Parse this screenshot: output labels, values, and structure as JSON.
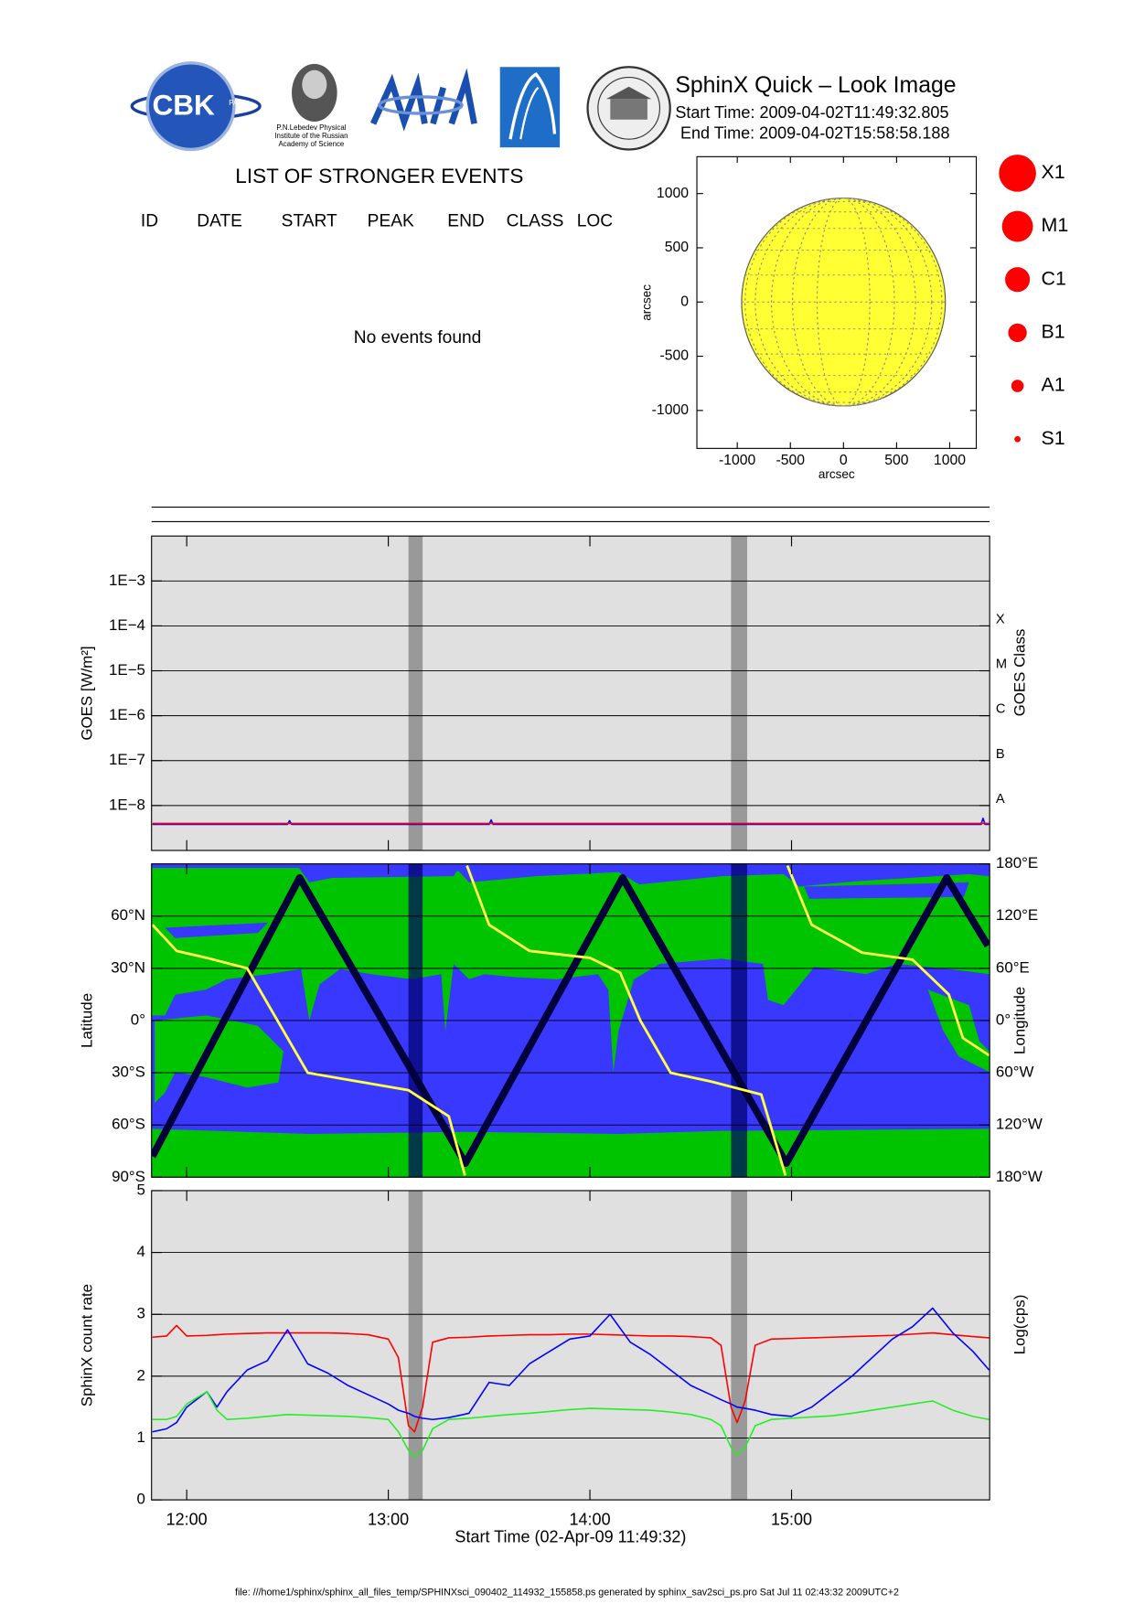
{
  "header": {
    "title": "SphinX Quick – Look Image",
    "start_time": "Start Time: 2009-04-02T11:49:32.805",
    "end_time": "End Time: 2009-04-02T15:58:58.188",
    "logo_cbk": "CBK",
    "logo_cbk_sub": "PAN",
    "logo_lebedev": [
      "P.N.Lebedev Physical",
      "Institute of the Russian",
      "Academy of Science"
    ]
  },
  "events": {
    "title": "LIST OF STRONGER EVENTS",
    "columns": [
      "ID",
      "DATE",
      "START",
      "PEAK",
      "END",
      "CLASS",
      "LOC"
    ],
    "empty_message": "No events found"
  },
  "footer": "file: ///home1/sphinx/sphinx_all_files_temp/SPHINXsci_090402_114932_155858.ps generated by sphinx_sav2sci_ps.pro Sat Jul 11 02:43:32 2009UTC+2",
  "chart_data": [
    {
      "type": "disk",
      "xlabel": "arcsec",
      "ylabel": "arcsec",
      "xlim": [
        -1380,
        1250
      ],
      "ylim": [
        -1350,
        1340
      ],
      "xticks": [
        -1000,
        -500,
        0,
        500,
        1000
      ],
      "yticks": [
        -1000,
        -500,
        0,
        500,
        1000
      ],
      "disk_radius": 959,
      "color": "#ffff33",
      "legend": {
        "labels": [
          "X1",
          "M1",
          "C1",
          "B1",
          "A1",
          "S1"
        ],
        "color": "#ff0000"
      }
    },
    {
      "type": "line",
      "ylabel": "GOES [W/m²]",
      "y2label": "GOES Class",
      "log_y": true,
      "grid": true,
      "xlim": [
        11.8256,
        15.9828
      ],
      "ylim": [
        1e-09,
        0.01
      ],
      "yticks": [
        {
          "value": 1e-08,
          "label": "1E−8"
        },
        {
          "value": 1e-07,
          "label": "1E−7"
        },
        {
          "value": 1e-06,
          "label": "1E−6"
        },
        {
          "value": 1e-05,
          "label": "1E−5"
        },
        {
          "value": 0.0001,
          "label": "1E−4"
        },
        {
          "value": 0.001,
          "label": "1E−3"
        }
      ],
      "y2lim": [
        1e-09,
        0.01
      ],
      "y2ticks": [
        {
          "value": 1e-08,
          "label": "A"
        },
        {
          "value": 1e-07,
          "label": "B"
        },
        {
          "value": 1e-06,
          "label": "C"
        },
        {
          "value": 1e-05,
          "label": "M"
        },
        {
          "value": 0.0001,
          "label": "X"
        }
      ],
      "shaded": [
        [
          13.1,
          13.17
        ],
        [
          14.7,
          14.78
        ]
      ],
      "shade_color": "#999999",
      "x": [
        11.83,
        12.0,
        12.5,
        12.51,
        12.52,
        13.0,
        13.5,
        13.51,
        13.52,
        14.0,
        14.5,
        15.0,
        15.5,
        15.94,
        15.95,
        15.96,
        15.98
      ],
      "series": [
        {
          "color": "#0000ff",
          "values": [
            3.8e-09,
            3.8e-09,
            3.8e-09,
            4.6e-09,
            3.8e-09,
            3.8e-09,
            3.8e-09,
            4.8e-09,
            3.8e-09,
            3.8e-09,
            3.8e-09,
            3.8e-09,
            3.8e-09,
            3.8e-09,
            5.2e-09,
            3.8e-09,
            3.8e-09
          ]
        },
        {
          "color": "#ff0000",
          "values": [
            4e-09,
            4e-09,
            4e-09,
            4e-09,
            4e-09,
            4e-09,
            4e-09,
            4e-09,
            4e-09,
            4e-09,
            4e-09,
            4e-09,
            4e-09,
            4e-09,
            4e-09,
            4e-09,
            4e-09
          ]
        }
      ]
    },
    {
      "type": "map",
      "ylabel": "Latitude",
      "y2label": "Longitude",
      "grid": true,
      "xlim": [
        11.8256,
        15.9828
      ],
      "ylim": [
        -90,
        90
      ],
      "yticks": [
        {
          "value": -90,
          "label": "90°S"
        },
        {
          "value": -60,
          "label": "60°S"
        },
        {
          "value": -30,
          "label": "30°S"
        },
        {
          "value": 0,
          "label": "0°"
        },
        {
          "value": 30,
          "label": "30°N"
        },
        {
          "value": 60,
          "label": "60°N"
        }
      ],
      "y2lim": [
        -180,
        180
      ],
      "y2ticks": [
        {
          "value": -180,
          "label": "180°W"
        },
        {
          "value": -120,
          "label": "120°W"
        },
        {
          "value": -60,
          "label": "60°W"
        },
        {
          "value": 0,
          "label": "0°"
        },
        {
          "value": 60,
          "label": "60°E"
        },
        {
          "value": 120,
          "label": "120°E"
        },
        {
          "value": 180,
          "label": "180°E"
        }
      ],
      "shaded": [
        [
          13.1,
          13.17
        ],
        [
          14.7,
          14.78
        ]
      ],
      "shade_color": "#000066",
      "series": [
        {
          "color": "#00003a",
          "x": [
            11.83,
            12.56,
            13.382,
            14.162,
            14.974,
            15.77,
            15.974
          ],
          "values": [
            -78,
            82,
            -82,
            82,
            -82,
            82,
            43
          ]
        },
        {
          "color": "#ffff44",
          "axis": "y2",
          "x": [
            11.83,
            11.95,
            12.1,
            12.3,
            12.45,
            12.6,
            12.8,
            13.1,
            13.3,
            13.38,
            13.385,
            13.39,
            13.5,
            13.7,
            14.0,
            14.15,
            14.25,
            14.4,
            14.6,
            14.85,
            14.97,
            14.975,
            14.98,
            15.1,
            15.35,
            15.6,
            15.78,
            15.85,
            15.98
          ],
          "values": [
            110,
            80,
            72,
            60,
            0,
            -60,
            -68,
            -80,
            -110,
            -178,
            null,
            178,
            110,
            80,
            72,
            55,
            0,
            -60,
            -70,
            -85,
            -178,
            null,
            178,
            110,
            78,
            70,
            30,
            -20,
            -40
          ]
        }
      ]
    },
    {
      "type": "line",
      "ylabel": "SphinX count rate",
      "y2label": "Log(cps)",
      "xlabel": "Start Time (02-Apr-09 11:49:32)",
      "grid": true,
      "xlim": [
        11.8256,
        15.9828
      ],
      "ylim": [
        0,
        5
      ],
      "xticks": [
        {
          "value": 12,
          "label": "12:00"
        },
        {
          "value": 13,
          "label": "13:00"
        },
        {
          "value": 14,
          "label": "14:00"
        },
        {
          "value": 15,
          "label": "15:00"
        }
      ],
      "yticks": [
        0,
        1,
        2,
        3,
        4,
        5
      ],
      "shaded": [
        [
          13.1,
          13.17
        ],
        [
          14.7,
          14.78
        ]
      ],
      "shade_color": "#999999",
      "x": [
        11.83,
        11.9,
        11.95,
        12.0,
        12.1,
        12.15,
        12.2,
        12.3,
        12.4,
        12.5,
        12.6,
        12.7,
        12.8,
        12.9,
        13.0,
        13.05,
        13.1,
        13.13,
        13.17,
        13.22,
        13.3,
        13.4,
        13.5,
        13.6,
        13.7,
        13.8,
        13.9,
        14.0,
        14.1,
        14.2,
        14.3,
        14.4,
        14.5,
        14.6,
        14.65,
        14.7,
        14.73,
        14.77,
        14.82,
        14.9,
        15.0,
        15.1,
        15.2,
        15.3,
        15.4,
        15.5,
        15.6,
        15.7,
        15.8,
        15.9,
        15.98
      ],
      "series": [
        {
          "color": "#ff0000",
          "values": [
            2.63,
            2.65,
            2.82,
            2.65,
            2.66,
            2.67,
            2.68,
            2.69,
            2.7,
            2.7,
            2.7,
            2.7,
            2.69,
            2.67,
            2.6,
            2.3,
            1.2,
            1.1,
            1.5,
            2.55,
            2.62,
            2.63,
            2.65,
            2.66,
            2.67,
            2.67,
            2.68,
            2.68,
            2.67,
            2.66,
            2.65,
            2.65,
            2.64,
            2.62,
            2.5,
            1.5,
            1.25,
            1.6,
            2.5,
            2.6,
            2.61,
            2.62,
            2.63,
            2.64,
            2.65,
            2.66,
            2.68,
            2.7,
            2.67,
            2.64,
            2.62
          ]
        },
        {
          "color": "#0000ff",
          "values": [
            1.1,
            1.15,
            1.25,
            1.5,
            1.75,
            1.5,
            1.75,
            2.1,
            2.25,
            2.75,
            2.2,
            2.05,
            1.85,
            1.7,
            1.55,
            1.45,
            1.4,
            1.35,
            1.32,
            1.3,
            1.33,
            1.4,
            1.9,
            1.85,
            2.2,
            2.4,
            2.6,
            2.65,
            3.0,
            2.55,
            2.35,
            2.1,
            1.85,
            1.7,
            1.62,
            1.55,
            1.5,
            1.48,
            1.45,
            1.38,
            1.35,
            1.5,
            1.75,
            2.0,
            2.3,
            2.6,
            2.8,
            3.1,
            2.7,
            2.4,
            2.1
          ]
        },
        {
          "color": "#22ee22",
          "values": [
            1.3,
            1.3,
            1.35,
            1.55,
            1.75,
            1.45,
            1.3,
            1.32,
            1.35,
            1.38,
            1.37,
            1.36,
            1.35,
            1.33,
            1.3,
            1.1,
            0.8,
            0.7,
            0.8,
            1.15,
            1.3,
            1.32,
            1.35,
            1.38,
            1.4,
            1.43,
            1.46,
            1.48,
            1.47,
            1.46,
            1.45,
            1.42,
            1.38,
            1.3,
            1.2,
            0.85,
            0.72,
            0.85,
            1.2,
            1.3,
            1.32,
            1.34,
            1.36,
            1.4,
            1.45,
            1.5,
            1.55,
            1.6,
            1.45,
            1.35,
            1.3
          ]
        }
      ]
    }
  ]
}
